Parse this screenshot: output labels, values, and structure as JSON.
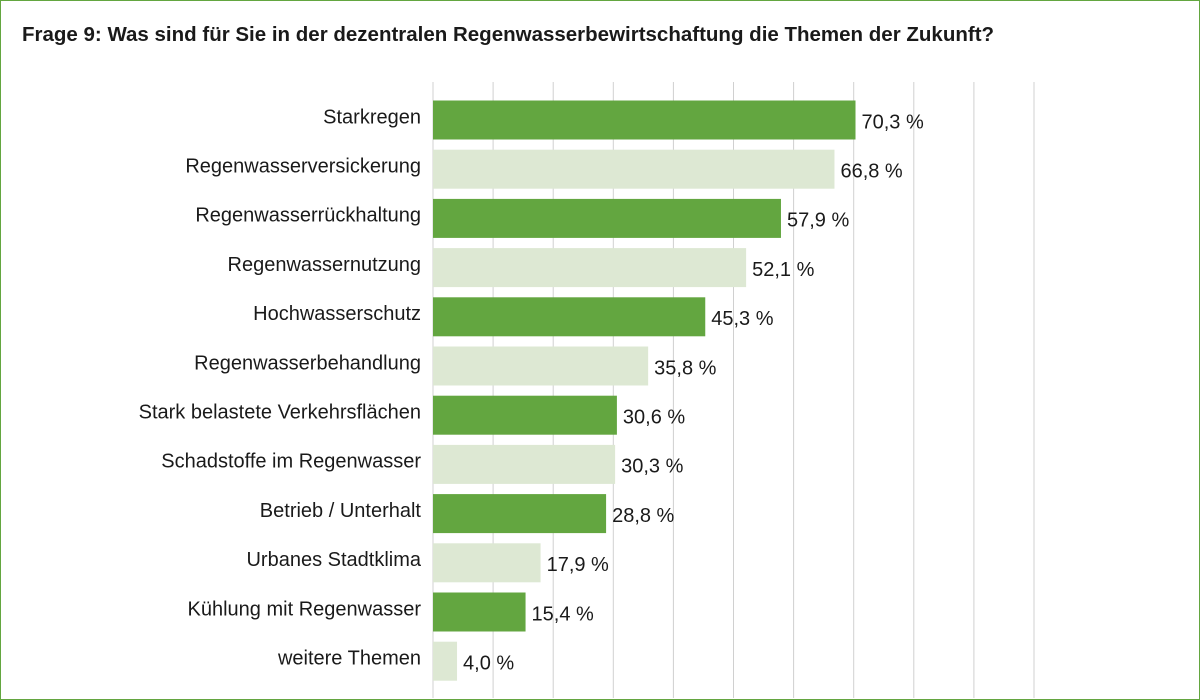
{
  "chart_data": {
    "type": "bar",
    "orientation": "horizontal",
    "title": "Frage 9: Was sind für Sie in der dezentralen Regenwasserbewirtschaftung die Themen der Zukunft?",
    "categories": [
      "Starkregen",
      "Regenwasserversickerung",
      "Regenwasserrückhaltung",
      "Regenwassernutzung",
      "Hochwasserschutz",
      "Regenwasserbehandlung",
      "Stark belastete Verkehrsflächen",
      "Schadstoffe im Regenwasser",
      "Betrieb / Unterhalt",
      "Urbanes Stadtklima",
      "Kühlung mit Regenwasser",
      "weitere Themen"
    ],
    "values": [
      70.3,
      66.8,
      57.9,
      52.1,
      45.3,
      35.8,
      30.6,
      30.3,
      28.8,
      17.9,
      15.4,
      4.0
    ],
    "value_labels": [
      "70,3 %",
      "66,8 %",
      "57,9 %",
      "52,1 %",
      "45,3 %",
      "35,8 %",
      "30,6 %",
      "30,3 %",
      "28,8 %",
      "17,9 %",
      "15,4 %",
      "4,0 %"
    ],
    "unit": "%",
    "xlim": [
      0,
      100
    ],
    "xticks": [
      0,
      10,
      20,
      30,
      40,
      50,
      60,
      70,
      80,
      90,
      100
    ],
    "grid": true,
    "legend": "none",
    "colors": {
      "bar_dark": "#63a640",
      "bar_light": "#dde8d3",
      "grid": "#d0d0d0",
      "frame": "#63a640",
      "text": "#1a1a1a"
    }
  }
}
